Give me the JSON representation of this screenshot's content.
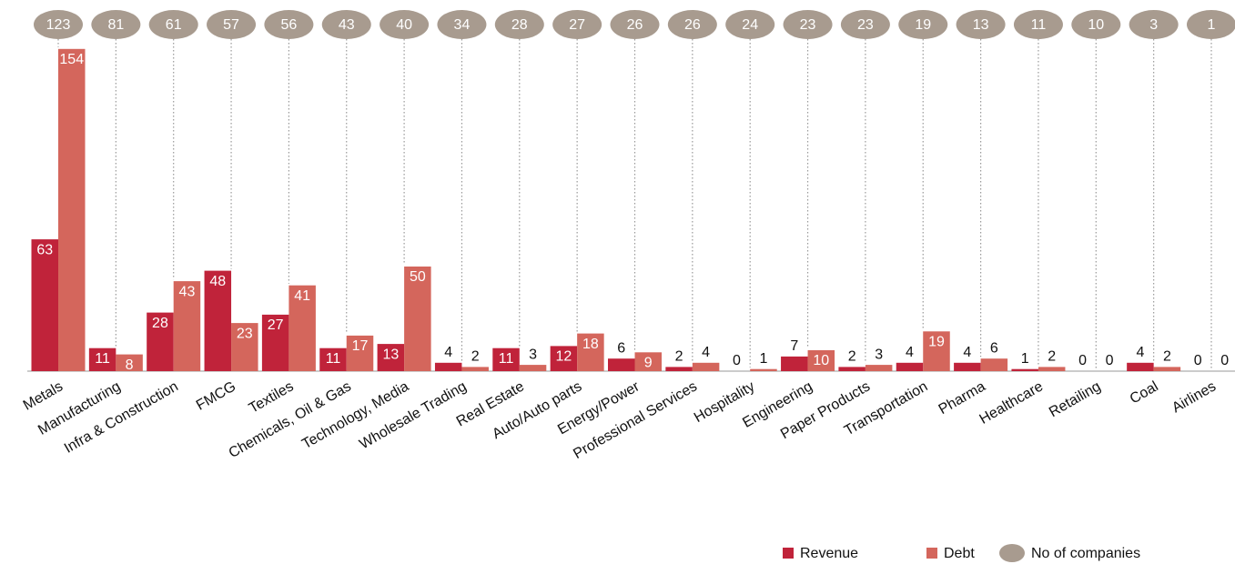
{
  "chart_data": {
    "type": "bar",
    "categories": [
      "Metals",
      "Manufacturing",
      "Infra & Construction",
      "FMCG",
      "Textiles",
      "Chemicals, Oil & Gas",
      "Technology, Media",
      "Wholesale Trading",
      "Real Estate",
      "Auto/Auto parts",
      "Energy/Power",
      "Professional Services",
      "Hospitality",
      "Engineering",
      "Paper Products",
      "Transportation",
      "Pharma",
      "Healthcare",
      "Retailing",
      "Coal",
      "Airlines"
    ],
    "series": [
      {
        "name": "Revenue",
        "color": "#c0233a",
        "values": [
          63,
          11,
          28,
          48,
          27,
          11,
          13,
          4,
          11,
          12,
          6,
          2,
          0,
          7,
          2,
          4,
          4,
          1,
          0,
          4,
          0
        ]
      },
      {
        "name": "Debt",
        "color": "#d4665c",
        "values": [
          154,
          8,
          43,
          23,
          41,
          17,
          50,
          2,
          3,
          18,
          9,
          4,
          1,
          10,
          3,
          19,
          6,
          2,
          0,
          2,
          0
        ]
      },
      {
        "name": "No of companies",
        "color": "#a89b8f",
        "marker": "ellipse",
        "values": [
          123,
          81,
          61,
          57,
          56,
          43,
          40,
          34,
          28,
          27,
          26,
          26,
          24,
          23,
          23,
          19,
          13,
          11,
          10,
          3,
          1
        ]
      }
    ],
    "legend": "bottom-right"
  }
}
